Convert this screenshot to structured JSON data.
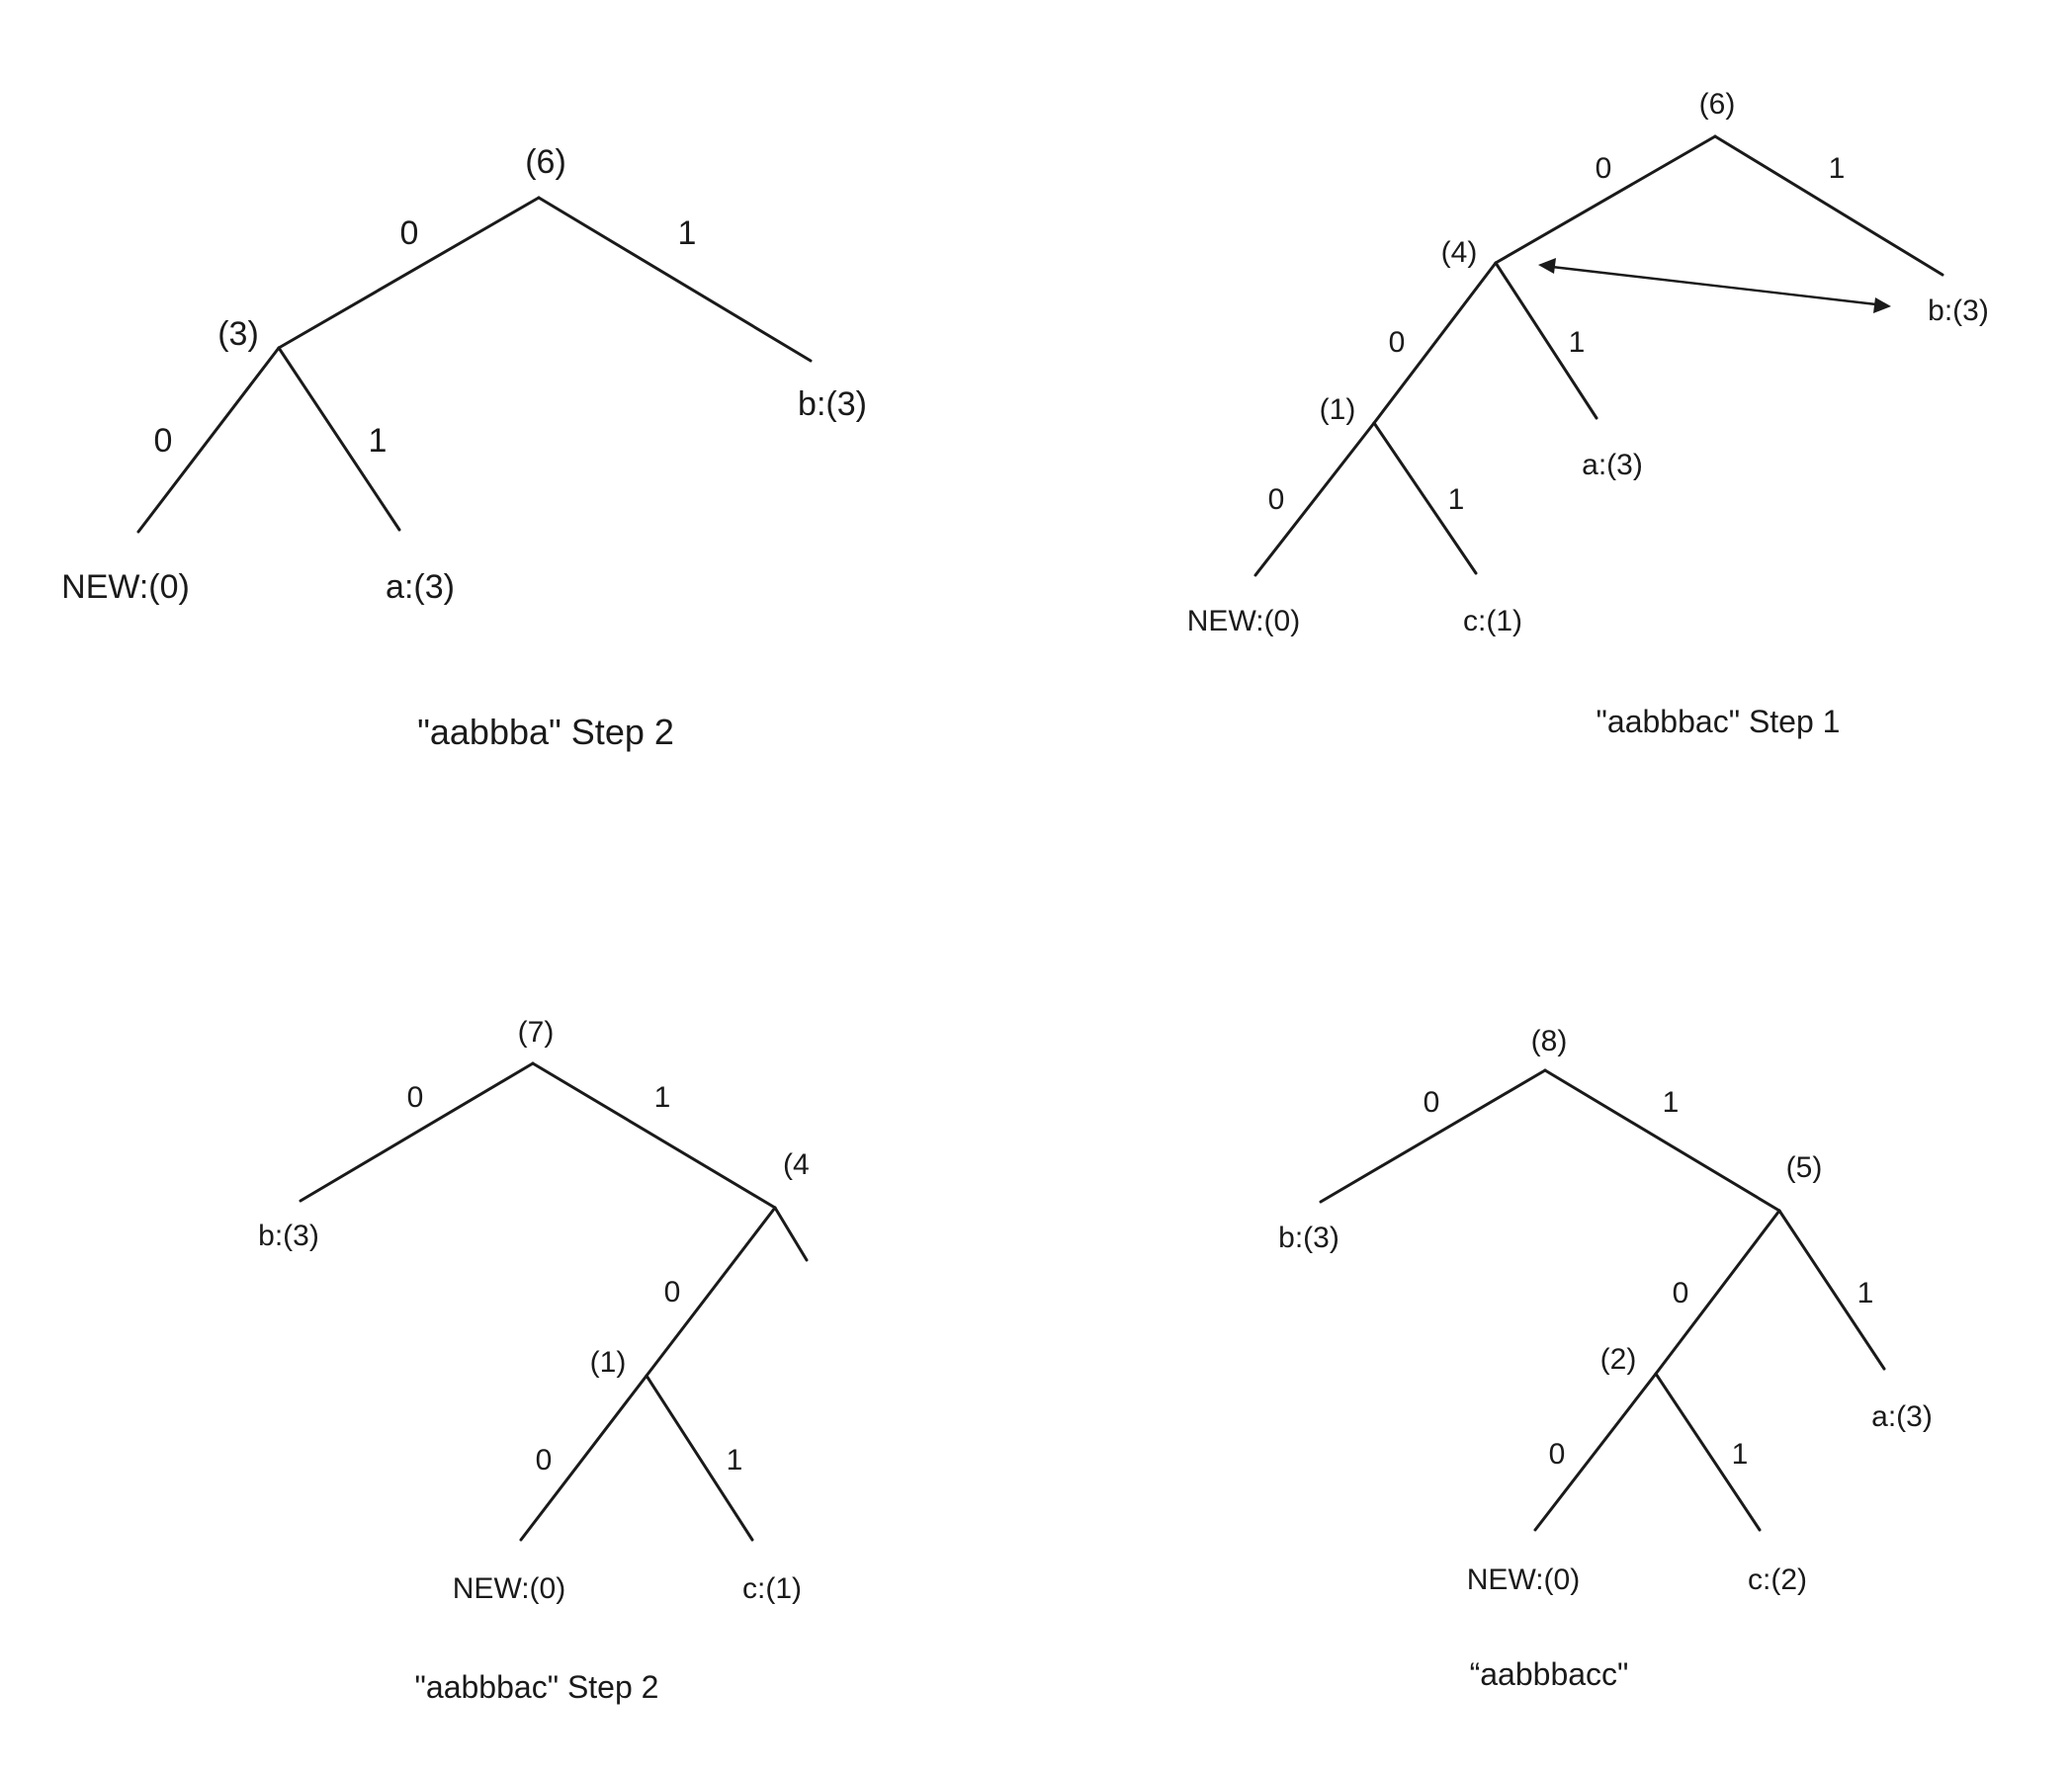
{
  "diagrams": [
    {
      "caption": "\"aabbba\" Step 2",
      "nodes": {
        "root": "(6)",
        "left": "(3)",
        "right_leaf": "b:(3)",
        "ll_leaf": "NEW:(0)",
        "lr_leaf": "a:(3)"
      },
      "edges": {
        "root_left": "0",
        "root_right": "1",
        "left_left": "0",
        "left_right": "1"
      }
    },
    {
      "caption": "\"aabbbac\" Step 1",
      "nodes": {
        "root": "(6)",
        "left": "(4)",
        "right_leaf": "b:(3)",
        "ll": "(1)",
        "lr_leaf": "a:(3)",
        "lll_leaf": "NEW:(0)",
        "llr_leaf": "c:(1)"
      },
      "edges": {
        "root_left": "0",
        "root_right": "1",
        "left_left": "0",
        "left_right": "1",
        "ll_left": "0",
        "ll_right": "1"
      }
    },
    {
      "caption": "\"aabbbac\" Step 2",
      "nodes": {
        "root": "(7)",
        "left_leaf": "b:(3)",
        "right": "(4",
        "rl": "(1)",
        "rll_leaf": "NEW:(0)",
        "rlr_leaf": "c:(1)"
      },
      "edges": {
        "root_left": "0",
        "root_right": "1",
        "right_left": "0",
        "rl_left": "0",
        "rl_right": "1"
      }
    },
    {
      "caption": "“aabbbacc\"",
      "nodes": {
        "root": "(8)",
        "left_leaf": "b:(3)",
        "right": "(5)",
        "rl": "(2)",
        "rr_leaf": "a:(3)",
        "rll_leaf": "NEW:(0)",
        "rlr_leaf": "c:(2)"
      },
      "edges": {
        "root_left": "0",
        "root_right": "1",
        "right_left": "0",
        "right_right": "1",
        "rl_left": "0",
        "rl_right": "1"
      }
    }
  ]
}
